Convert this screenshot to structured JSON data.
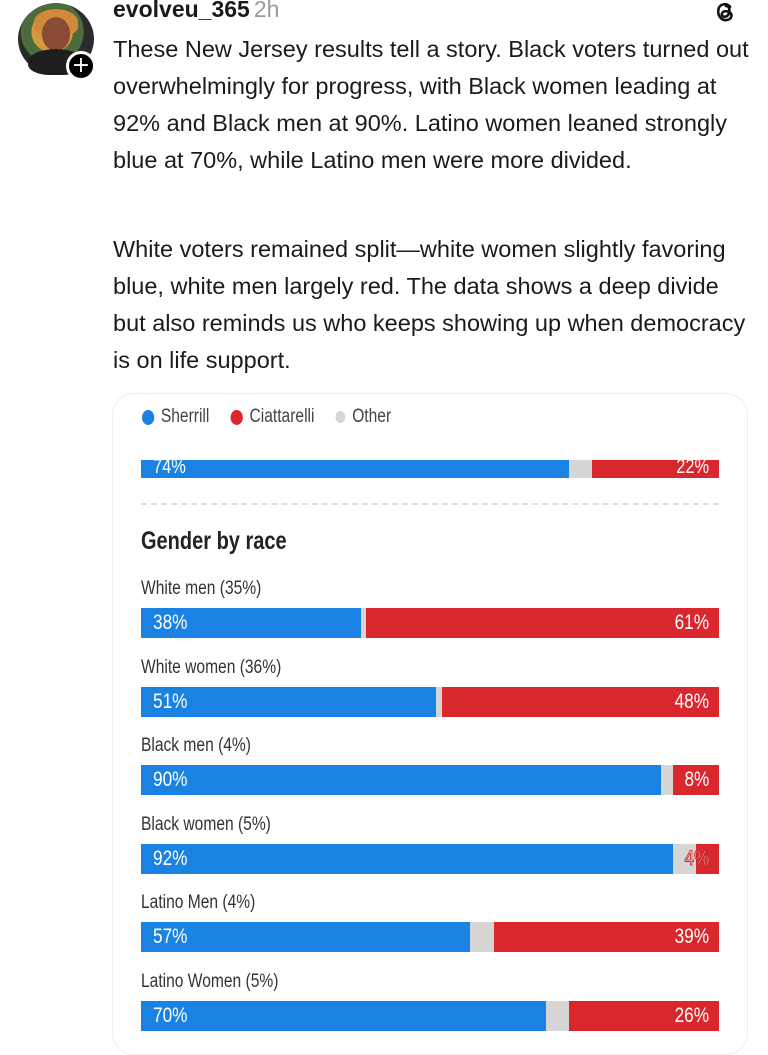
{
  "post": {
    "username": "evolveu_365",
    "timestamp": "2h",
    "follow_icon": "plus-icon",
    "app_icon": "threads-icon",
    "paragraphs": [
      "These New Jersey results tell a story. Black voters turned out overwhelmingly for progress, with Black women leading at 92% and Black men at 90%. Latino women leaned strongly blue at 70%, while Latino men were more divided.",
      "White voters remained split—white women slightly favoring blue, white men largely red. The data shows a deep divide but also reminds us who keeps showing up when democracy is on life support."
    ]
  },
  "colors": {
    "sherrill": "#1a82e2",
    "ciattarelli": "#d9272e",
    "other": "#d6d6d6"
  },
  "chart_data": {
    "type": "bar",
    "orientation": "horizontal-stacked",
    "legend": [
      "Sherrill",
      "Ciattarelli",
      "Other"
    ],
    "legend_placement": "top-left",
    "top_partial_row": {
      "label": "",
      "sherrill": 74,
      "ciattarelli": 22,
      "sherrill_label": "74%",
      "ciattarelli_label": "22%"
    },
    "title": "Gender by race",
    "categories": [
      "White men (35%)",
      "White women (36%)",
      "Black men (4%)",
      "Black women (5%)",
      "Latino Men (4%)",
      "Latino Women (5%)"
    ],
    "series": [
      {
        "name": "Sherrill",
        "values": [
          38,
          51,
          90,
          92,
          57,
          70
        ]
      },
      {
        "name": "Ciattarelli",
        "values": [
          61,
          48,
          8,
          4,
          39,
          26
        ]
      }
    ],
    "value_labels": {
      "sherrill": [
        "38%",
        "51%",
        "90%",
        "92%",
        "57%",
        "70%"
      ],
      "ciattarelli": [
        "61%",
        "48%",
        "8%",
        "4%",
        "39%",
        "26%"
      ]
    },
    "xlim": [
      0,
      100
    ]
  }
}
